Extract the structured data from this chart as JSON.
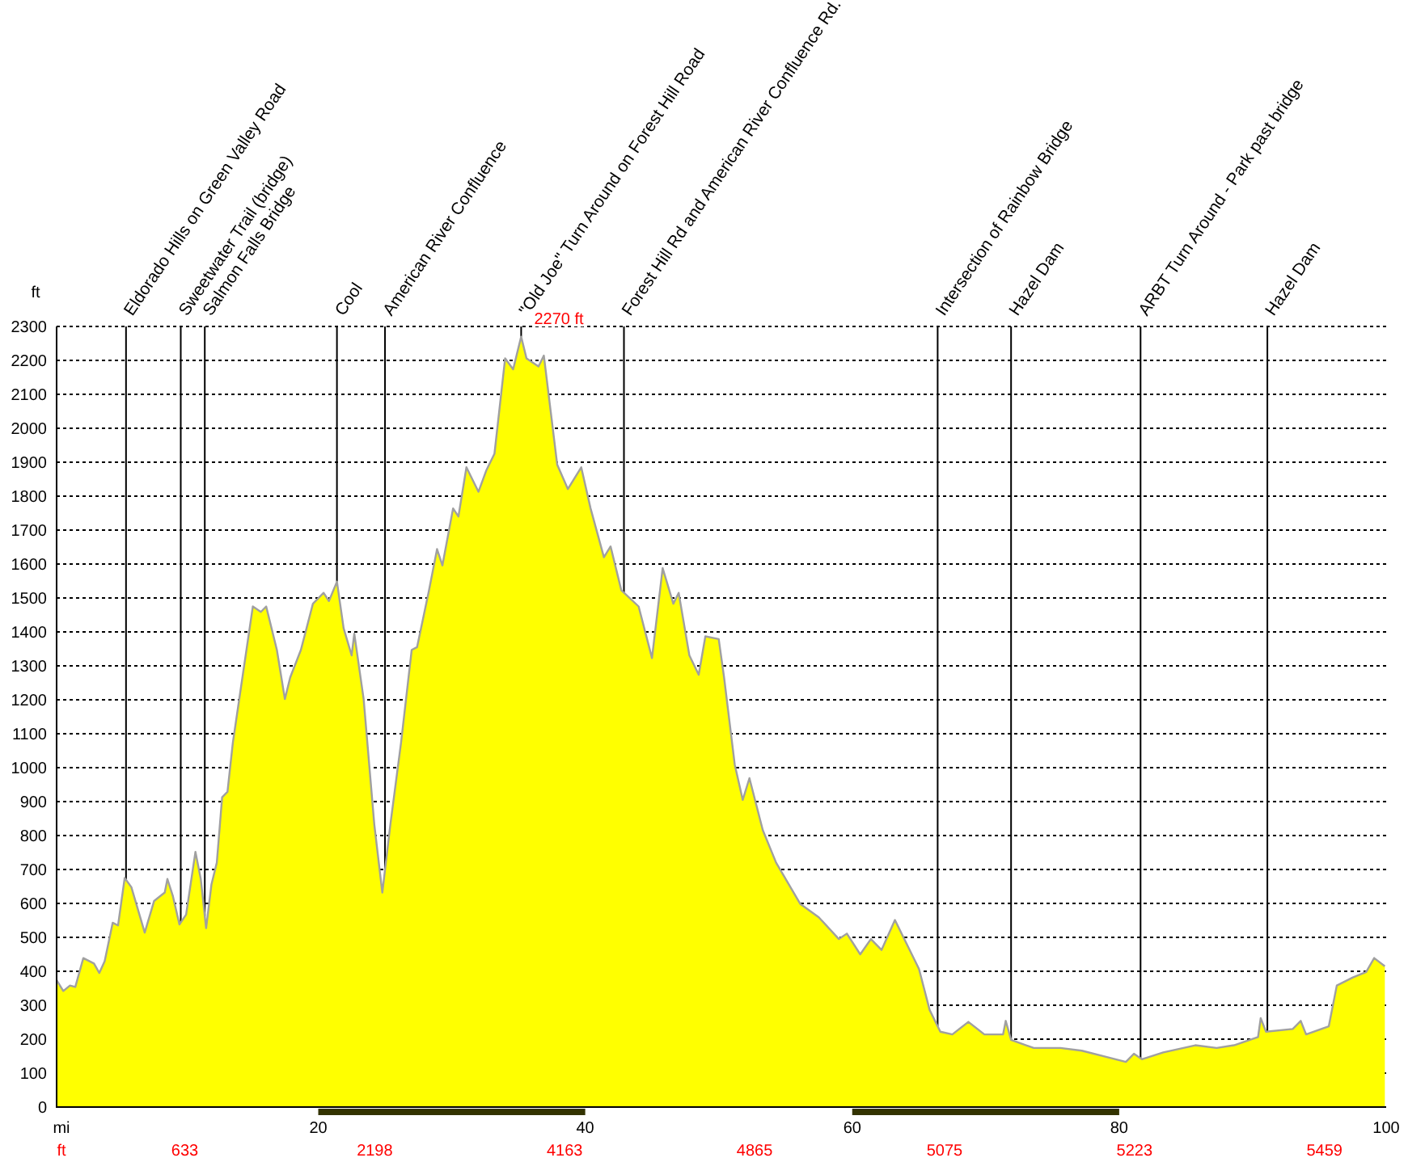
{
  "chart_data": {
    "type": "area",
    "xlabel": "mi",
    "ylabel": "ft",
    "grid": "y",
    "xlim": [
      0.4,
      100
    ],
    "xticks": [
      20,
      40,
      60,
      80,
      100
    ],
    "ylim": [
      0,
      2300
    ],
    "yticks": [
      0,
      100,
      200,
      300,
      400,
      500,
      600,
      700,
      800,
      900,
      1000,
      1100,
      1200,
      1300,
      1400,
      1500,
      1600,
      1700,
      1800,
      1900,
      2000,
      2100,
      2200,
      2300
    ],
    "series": [
      {
        "color": "#ffff00",
        "x": [
          0.4,
          0.9,
          1.4,
          1.8,
          2.4,
          3.2,
          3.6,
          4.0,
          4.6,
          5.0,
          5.5,
          6.0,
          7.0,
          7.7,
          8.5,
          8.7,
          9.1,
          9.6,
          10.1,
          10.8,
          11.2,
          11.6,
          12.0,
          12.4,
          12.8,
          13.2,
          13.6,
          14.2,
          15.1,
          15.7,
          16.1,
          16.9,
          17.5,
          17.9,
          18.7,
          19.6,
          20.4,
          20.8,
          21.4,
          21.9,
          22.5,
          22.7,
          23.4,
          24.2,
          24.8,
          25.4,
          26.2,
          27.0,
          27.4,
          28.3,
          28.9,
          29.3,
          30.1,
          30.5,
          31.1,
          32.0,
          32.6,
          33.2,
          34.0,
          34.6,
          35.2,
          35.6,
          36.5,
          36.9,
          37.9,
          38.7,
          39.7,
          40.4,
          41.4,
          41.9,
          42.7,
          44.0,
          45.0,
          45.8,
          46.6,
          47.0,
          47.8,
          48.5,
          49.0,
          50.0,
          50.4,
          51.2,
          51.8,
          52.3,
          53.3,
          54.3,
          56.1,
          57.5,
          59.0,
          59.6,
          60.6,
          61.4,
          62.2,
          63.2,
          65.0,
          65.8,
          66.6,
          67.5,
          68.7,
          69.9,
          71.3,
          71.5,
          71.9,
          73.6,
          75.6,
          77.2,
          78.9,
          80.5,
          81.1,
          81.7,
          83.3,
          85.7,
          87.3,
          88.6,
          90.4,
          90.6,
          91.0,
          93.0,
          93.6,
          94.0,
          95.7,
          96.3,
          97.5,
          98.5,
          99.1,
          99.9
        ],
        "values": [
          374,
          342,
          358,
          354,
          439,
          423,
          395,
          430,
          543,
          535,
          675,
          648,
          514,
          607,
          632,
          672,
          623,
          538,
          567,
          752,
          672,
          527,
          656,
          720,
          913,
          929,
          1073,
          1234,
          1475,
          1459,
          1475,
          1347,
          1202,
          1266,
          1347,
          1483,
          1515,
          1491,
          1548,
          1411,
          1331,
          1395,
          1202,
          832,
          632,
          832,
          1073,
          1347,
          1355,
          1523,
          1644,
          1596,
          1764,
          1740,
          1885,
          1813,
          1877,
          1925,
          2206,
          2174,
          2270,
          2206,
          2182,
          2214,
          1893,
          1821,
          1885,
          1764,
          1620,
          1652,
          1523,
          1475,
          1323,
          1588,
          1483,
          1515,
          1331,
          1274,
          1387,
          1379,
          1266,
          1009,
          905,
          969,
          816,
          720,
          599,
          559,
          495,
          511,
          450,
          495,
          463,
          551,
          407,
          286,
          222,
          214,
          251,
          214,
          214,
          254,
          198,
          174,
          174,
          166,
          149,
          133,
          157,
          141,
          161,
          182,
          174,
          182,
          206,
          262,
          222,
          230,
          254,
          214,
          238,
          358,
          382,
          398,
          439,
          415
        ]
      }
    ],
    "ref_lines": [
      {
        "axis": "x",
        "value": 5.6,
        "label": "Eldorado Hills on Green Valley Road"
      },
      {
        "axis": "x",
        "value": 9.7,
        "label": "Sweetwater Trail (bridge)"
      },
      {
        "axis": "x",
        "value": 11.5,
        "label": "Salmon Falls Bridge"
      },
      {
        "axis": "x",
        "value": 21.4,
        "label": "Cool"
      },
      {
        "axis": "x",
        "value": 25.0,
        "label": "American River Confluence"
      },
      {
        "axis": "x",
        "value": 35.2,
        "label": "\"Old Joe\" Turn Around on Forest Hill Road"
      },
      {
        "axis": "x",
        "value": 42.9,
        "label": "Forest Hill Rd and American River Confluence Rd."
      },
      {
        "axis": "x",
        "value": 66.4,
        "label": "Intersection of Rainbow Bridge"
      },
      {
        "axis": "x",
        "value": 71.9,
        "label": "Hazel Dam"
      },
      {
        "axis": "x",
        "value": 81.6,
        "label": "ARBT Turn Around - Park past bridge"
      },
      {
        "axis": "x",
        "value": 91.1,
        "label": "Hazel Dam"
      }
    ],
    "annotations": [
      {
        "text": "2270 ft",
        "x": 35.2,
        "y": 2270
      },
      "ft",
      "633",
      "2198",
      "4163",
      "4865",
      "5075",
      "5223",
      "5459"
    ]
  }
}
